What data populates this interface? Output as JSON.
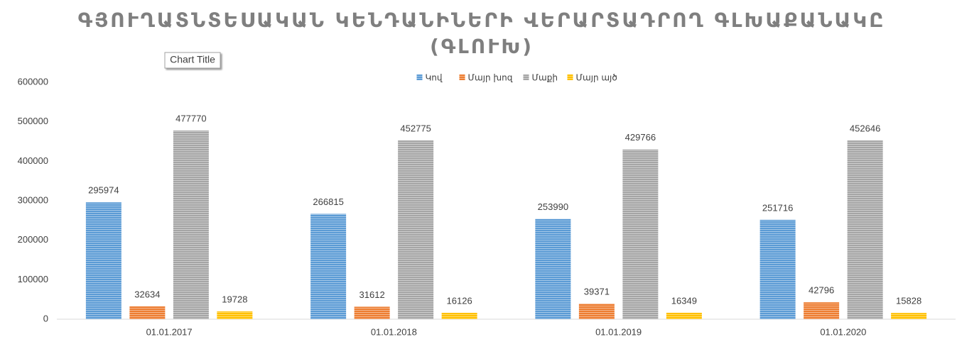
{
  "chart_data": {
    "type": "bar",
    "title": [
      "ԳՅՈՒՂԱՏՆՏԵՍԱԿԱՆ ԿԵՆԴԱՆԻՆԵՐԻ ՎԵՐԱՐՏԱԴՐՈՂ ԳԼԽԱՔԱՆԱԿԸ",
      "(ԳԼՈՒԽ)"
    ],
    "annotation": "Chart Title",
    "categories": [
      "01.01.2017",
      "01.01.2018",
      "01.01.2019",
      "01.01.2020"
    ],
    "series": [
      {
        "name": "Կով",
        "color": "#5b9bd5",
        "values": [
          295974,
          266815,
          253990,
          251716
        ]
      },
      {
        "name": "Մայր խոզ",
        "color": "#ed7d31",
        "values": [
          32634,
          31612,
          39371,
          42796
        ]
      },
      {
        "name": "Մաքի",
        "color": "#a5a5a5",
        "values": [
          477770,
          452775,
          429766,
          452646
        ]
      },
      {
        "name": "Մայր այծ",
        "color": "#ffc000",
        "values": [
          19728,
          16126,
          16349,
          15828
        ]
      }
    ],
    "ylim": [
      0,
      600000
    ],
    "yticks": [
      0,
      100000,
      200000,
      300000,
      400000,
      500000,
      600000
    ],
    "grid": false,
    "legend": "top"
  }
}
